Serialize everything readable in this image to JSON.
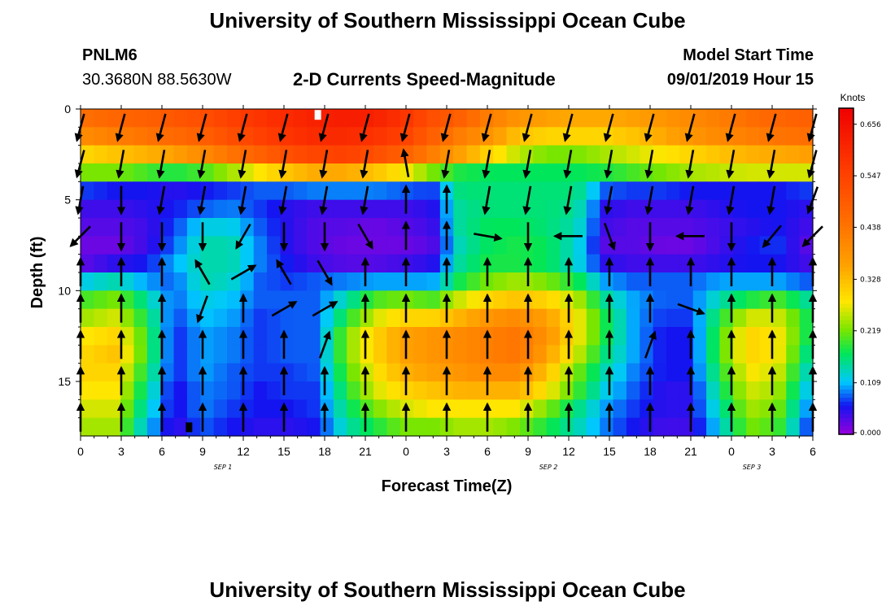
{
  "page": {
    "title_top": "University of Southern Mississippi Ocean Cube",
    "title_bottom": "University of Southern Mississippi Ocean Cube",
    "station_id": "PNLM6",
    "station_coords": "30.3680N 88.5630W",
    "subtitle": "2-D Currents Speed-Magnitude",
    "model_start_label": "Model Start Time",
    "model_start_value": "09/01/2019 Hour 15"
  },
  "chart_data": {
    "type": "heatmap",
    "title": "2-D Currents Speed-Magnitude",
    "xlabel": "Forecast Time(Z)",
    "ylabel": "Depth (ft)",
    "colorbar_label": "Knots",
    "x_ticks": [
      "0",
      "3",
      "6",
      "9",
      "12",
      "15",
      "18",
      "21",
      "0",
      "3",
      "6",
      "9",
      "12",
      "15",
      "18",
      "21",
      "0",
      "3",
      "6"
    ],
    "date_labels": [
      {
        "text": "SEP 1",
        "hour": 10.5
      },
      {
        "text": "SEP 2",
        "hour": 34.5
      },
      {
        "text": "SEP 3",
        "hour": 49.5
      }
    ],
    "x_range_hours": [
      0,
      54
    ],
    "y_range_ft": [
      0,
      18
    ],
    "y_ticks": [
      0,
      5,
      10,
      15
    ],
    "colorbar_ticks": [
      "0.656",
      "0.547",
      "0.438",
      "0.328",
      "0.219",
      "0.109",
      "0.000"
    ],
    "colorbar_range": [
      0,
      0.69
    ],
    "n_time_steps": 55,
    "depths_ft": [
      0.5,
      1.5,
      2.5,
      3.5,
      4.5,
      5.5,
      6.5,
      7.5,
      8.5,
      9.5,
      10.5,
      11.5,
      12.5,
      13.5,
      14.5,
      15.5,
      16.5,
      17.5
    ],
    "speed_knots_approx": [
      [
        0.45,
        0.47,
        0.48,
        0.5,
        0.52,
        0.55,
        0.58,
        0.6,
        0.62,
        0.63,
        0.62,
        0.58,
        0.52,
        0.48,
        0.42,
        0.38,
        0.36,
        0.35,
        0.35,
        0.36,
        0.38,
        0.4,
        0.42,
        0.45,
        0.47,
        0.48
      ],
      [
        0.4,
        0.42,
        0.44,
        0.46,
        0.48,
        0.52,
        0.55,
        0.58,
        0.6,
        0.6,
        0.58,
        0.55,
        0.48,
        0.42,
        0.38,
        0.32,
        0.3,
        0.3,
        0.3,
        0.32,
        0.35,
        0.38,
        0.4,
        0.42,
        0.44,
        0.45
      ],
      [
        0.3,
        0.32,
        0.34,
        0.36,
        0.4,
        0.44,
        0.48,
        0.52,
        0.54,
        0.55,
        0.52,
        0.48,
        0.42,
        0.36,
        0.3,
        0.25,
        0.22,
        0.22,
        0.24,
        0.26,
        0.28,
        0.3,
        0.32,
        0.34,
        0.35,
        0.36
      ],
      [
        0.22,
        0.22,
        0.2,
        0.18,
        0.2,
        0.24,
        0.28,
        0.32,
        0.35,
        0.35,
        0.32,
        0.28,
        0.22,
        0.18,
        0.17,
        0.17,
        0.17,
        0.17,
        0.18,
        0.2,
        0.22,
        0.24,
        0.25,
        0.26,
        0.26,
        0.26
      ],
      [
        0.07,
        0.06,
        0.06,
        0.05,
        0.06,
        0.07,
        0.08,
        0.08,
        0.09,
        0.09,
        0.09,
        0.08,
        0.07,
        0.16,
        0.16,
        0.16,
        0.16,
        0.16,
        0.08,
        0.07,
        0.07,
        0.06,
        0.06,
        0.06,
        0.06,
        0.07
      ],
      [
        0.04,
        0.04,
        0.05,
        0.06,
        0.08,
        0.09,
        0.07,
        0.05,
        0.04,
        0.04,
        0.04,
        0.04,
        0.05,
        0.15,
        0.16,
        0.16,
        0.16,
        0.15,
        0.05,
        0.04,
        0.04,
        0.04,
        0.05,
        0.06,
        0.06,
        0.05
      ],
      [
        0.03,
        0.03,
        0.04,
        0.07,
        0.12,
        0.12,
        0.08,
        0.05,
        0.03,
        0.03,
        0.02,
        0.03,
        0.04,
        0.15,
        0.17,
        0.17,
        0.16,
        0.14,
        0.04,
        0.03,
        0.03,
        0.03,
        0.04,
        0.05,
        0.06,
        0.04
      ],
      [
        0.02,
        0.02,
        0.04,
        0.08,
        0.14,
        0.14,
        0.09,
        0.05,
        0.03,
        0.02,
        0.02,
        0.02,
        0.03,
        0.14,
        0.17,
        0.18,
        0.17,
        0.13,
        0.03,
        0.03,
        0.02,
        0.02,
        0.04,
        0.06,
        0.07,
        0.03
      ],
      [
        0.03,
        0.05,
        0.06,
        0.1,
        0.14,
        0.14,
        0.09,
        0.06,
        0.04,
        0.03,
        0.03,
        0.04,
        0.05,
        0.15,
        0.18,
        0.18,
        0.17,
        0.13,
        0.05,
        0.04,
        0.04,
        0.04,
        0.05,
        0.06,
        0.06,
        0.04
      ],
      [
        0.12,
        0.14,
        0.1,
        0.08,
        0.14,
        0.13,
        0.08,
        0.07,
        0.08,
        0.09,
        0.1,
        0.1,
        0.1,
        0.18,
        0.22,
        0.24,
        0.22,
        0.18,
        0.1,
        0.08,
        0.08,
        0.08,
        0.1,
        0.1,
        0.1,
        0.08
      ],
      [
        0.2,
        0.22,
        0.15,
        0.08,
        0.12,
        0.11,
        0.08,
        0.08,
        0.08,
        0.14,
        0.2,
        0.22,
        0.2,
        0.26,
        0.3,
        0.32,
        0.3,
        0.25,
        0.15,
        0.1,
        0.08,
        0.08,
        0.14,
        0.18,
        0.2,
        0.15
      ],
      [
        0.24,
        0.26,
        0.18,
        0.07,
        0.11,
        0.1,
        0.07,
        0.08,
        0.08,
        0.18,
        0.26,
        0.3,
        0.3,
        0.34,
        0.38,
        0.4,
        0.36,
        0.28,
        0.18,
        0.1,
        0.07,
        0.07,
        0.18,
        0.26,
        0.26,
        0.18
      ],
      [
        0.28,
        0.3,
        0.2,
        0.06,
        0.1,
        0.09,
        0.07,
        0.08,
        0.08,
        0.22,
        0.3,
        0.36,
        0.38,
        0.4,
        0.42,
        0.44,
        0.38,
        0.28,
        0.18,
        0.1,
        0.06,
        0.06,
        0.2,
        0.3,
        0.28,
        0.18
      ],
      [
        0.3,
        0.32,
        0.2,
        0.06,
        0.1,
        0.09,
        0.07,
        0.08,
        0.08,
        0.22,
        0.3,
        0.36,
        0.38,
        0.4,
        0.42,
        0.44,
        0.36,
        0.26,
        0.16,
        0.1,
        0.06,
        0.06,
        0.2,
        0.3,
        0.28,
        0.16
      ],
      [
        0.3,
        0.3,
        0.18,
        0.06,
        0.1,
        0.08,
        0.07,
        0.07,
        0.08,
        0.2,
        0.28,
        0.34,
        0.36,
        0.38,
        0.4,
        0.4,
        0.32,
        0.22,
        0.14,
        0.09,
        0.06,
        0.06,
        0.18,
        0.28,
        0.26,
        0.14
      ],
      [
        0.28,
        0.28,
        0.16,
        0.05,
        0.09,
        0.08,
        0.06,
        0.07,
        0.07,
        0.18,
        0.26,
        0.3,
        0.32,
        0.34,
        0.34,
        0.34,
        0.28,
        0.2,
        0.12,
        0.08,
        0.05,
        0.05,
        0.16,
        0.26,
        0.24,
        0.12
      ],
      [
        0.26,
        0.26,
        0.14,
        0.05,
        0.09,
        0.07,
        0.06,
        0.06,
        0.07,
        0.16,
        0.22,
        0.26,
        0.28,
        0.28,
        0.28,
        0.28,
        0.22,
        0.16,
        0.1,
        0.07,
        0.05,
        0.05,
        0.14,
        0.24,
        0.22,
        0.1
      ],
      [
        0.24,
        0.24,
        0.12,
        0.04,
        0.08,
        0.06,
        0.05,
        0.05,
        0.06,
        0.14,
        0.18,
        0.22,
        0.22,
        0.24,
        0.24,
        0.22,
        0.18,
        0.14,
        0.09,
        0.06,
        0.04,
        0.04,
        0.12,
        0.22,
        0.2,
        0.08
      ]
    ],
    "arrow_depths_ft": [
      1,
      3,
      5,
      7,
      9,
      11,
      13,
      15,
      17
    ],
    "arrow_hours": [
      0,
      3,
      6,
      9,
      12,
      15,
      18,
      21,
      24,
      27,
      30,
      33,
      36,
      39,
      42,
      45,
      48,
      51,
      54
    ],
    "arrow_angle_deg_north_clockwise": [
      [
        195,
        195,
        195,
        195,
        195,
        195,
        195,
        195,
        195,
        195,
        195,
        195,
        195,
        195,
        195,
        195,
        195,
        195,
        195
      ],
      [
        195,
        190,
        190,
        190,
        190,
        190,
        190,
        190,
        350,
        190,
        190,
        190,
        190,
        190,
        190,
        190,
        190,
        190,
        195
      ],
      [
        190,
        180,
        190,
        190,
        190,
        190,
        190,
        190,
        0,
        0,
        190,
        190,
        190,
        190,
        190,
        190,
        190,
        190,
        200
      ],
      [
        225,
        180,
        180,
        180,
        210,
        180,
        180,
        150,
        0,
        0,
        100,
        180,
        270,
        160,
        180,
        270,
        180,
        220,
        225
      ],
      [
        0,
        0,
        0,
        330,
        60,
        330,
        150,
        0,
        0,
        0,
        0,
        0,
        0,
        0,
        0,
        0,
        0,
        0,
        0
      ],
      [
        0,
        0,
        0,
        200,
        0,
        60,
        60,
        0,
        0,
        0,
        0,
        0,
        0,
        0,
        0,
        110,
        0,
        0,
        0
      ],
      [
        0,
        0,
        0,
        0,
        0,
        0,
        20,
        0,
        0,
        0,
        0,
        0,
        0,
        0,
        20,
        0,
        0,
        0,
        0
      ],
      [
        0,
        0,
        0,
        0,
        0,
        0,
        0,
        0,
        0,
        0,
        0,
        0,
        0,
        0,
        0,
        0,
        0,
        0,
        0
      ],
      [
        0,
        0,
        0,
        0,
        0,
        0,
        0,
        0,
        0,
        0,
        0,
        0,
        0,
        0,
        0,
        0,
        0,
        0,
        0
      ]
    ],
    "missing_data_marks": [
      {
        "hour": 17.5,
        "depth_ft": 0.1,
        "color": "#ffffff"
      },
      {
        "hour": 8,
        "depth_ft": 17.3,
        "color": "#000000"
      }
    ]
  }
}
